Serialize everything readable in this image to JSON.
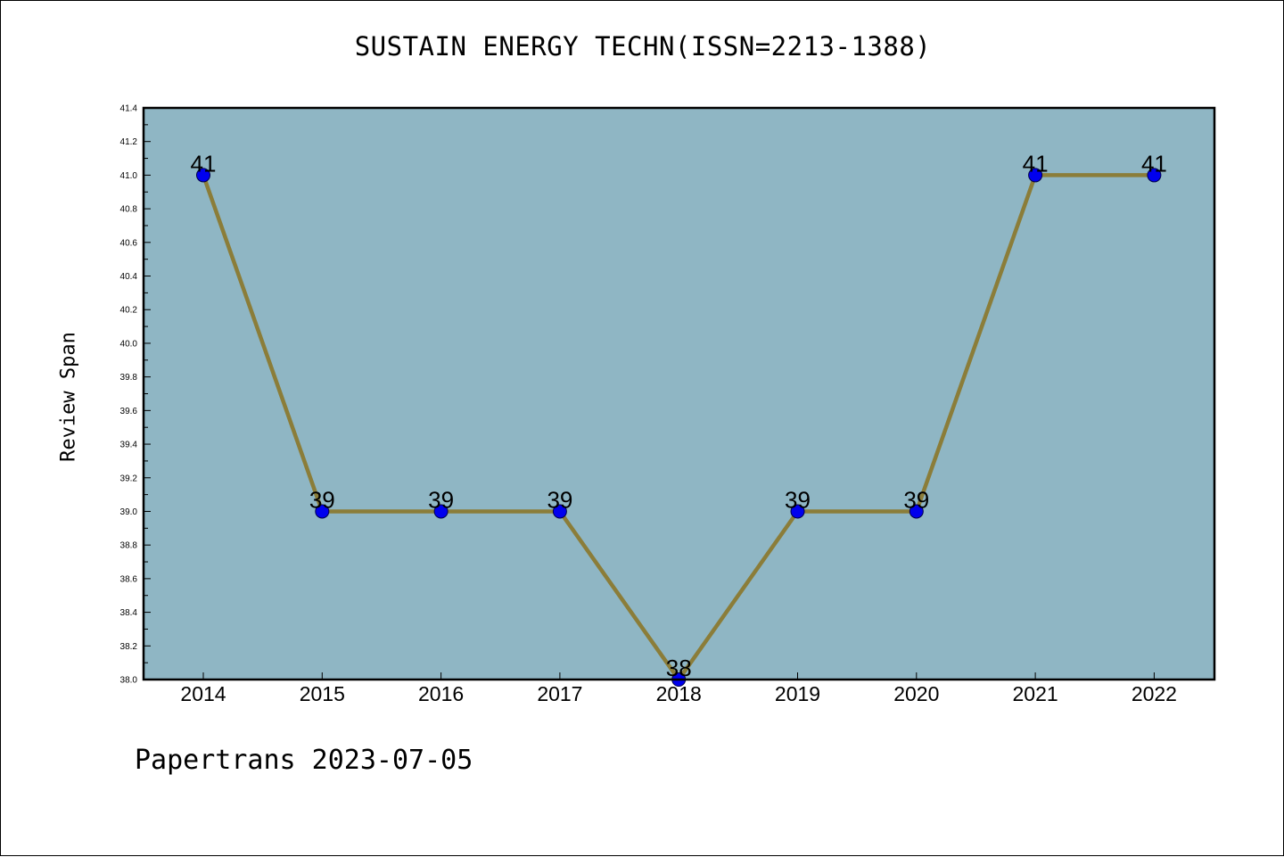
{
  "chart_data": {
    "type": "line",
    "title": "SUSTAIN ENERGY TECHN(ISSN=2213-1388)",
    "xlabel": "",
    "ylabel": "Review Span",
    "categories": [
      "2014",
      "2015",
      "2016",
      "2017",
      "2018",
      "2019",
      "2020",
      "2021",
      "2022"
    ],
    "values": [
      41,
      39,
      39,
      39,
      38,
      39,
      39,
      41,
      41
    ],
    "data_labels": [
      "41",
      "39",
      "39",
      "39",
      "38",
      "39",
      "39",
      "41",
      "41"
    ],
    "ylim": [
      38.0,
      41.4
    ],
    "yticks": [
      "38.0",
      "38.2",
      "38.4",
      "38.6",
      "38.8",
      "39.0",
      "39.2",
      "39.4",
      "39.6",
      "39.8",
      "40.0",
      "40.2",
      "40.4",
      "40.6",
      "40.8",
      "41.0",
      "41.2",
      "41.4"
    ],
    "grid": false,
    "colors": {
      "plot_background": "#8fb6c4",
      "line": "#8b7d39",
      "marker": "#0000ee",
      "marker_edge": "#00004a"
    }
  },
  "footer": "Papertrans 2023-07-05"
}
